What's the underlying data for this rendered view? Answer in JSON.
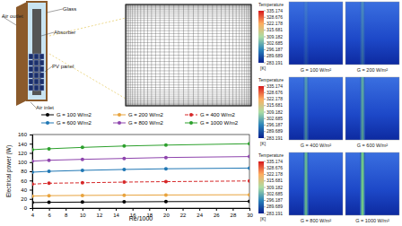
{
  "chart_data": {
    "type": "line",
    "xlabel": "Re/1000",
    "ylabel": "Electrical power (W)",
    "x": [
      4,
      6,
      10,
      15,
      20,
      30
    ],
    "xlim": [
      4,
      30
    ],
    "xticks": [
      4,
      6,
      8,
      10,
      12,
      14,
      16,
      18,
      20,
      22,
      24,
      26,
      28,
      30
    ],
    "ylim": [
      0,
      160
    ],
    "yticks": [
      0,
      20,
      40,
      60,
      80,
      100,
      120,
      140,
      160
    ],
    "grid": false,
    "legend": "top",
    "series": [
      {
        "name": "G = 100 W/m2",
        "color": "#000000",
        "marker": "circle",
        "line_style": "solid",
        "values": [
          12,
          12.5,
          13,
          13.5,
          14,
          14.5
        ]
      },
      {
        "name": "G = 200 W/m2",
        "color": "#e8a33d",
        "marker": "circle",
        "line_style": "solid",
        "values": [
          26,
          27,
          27.5,
          28,
          28.5,
          29
        ]
      },
      {
        "name": "G = 400 W/m2",
        "color": "#d62728",
        "marker": "circle",
        "line_style": "dashed",
        "values": [
          52,
          54,
          55,
          56.5,
          57.5,
          59
        ]
      },
      {
        "name": "G = 600 W/m2",
        "color": "#1f77b4",
        "marker": "circle",
        "line_style": "solid",
        "values": [
          78,
          80,
          82,
          84,
          85.5,
          87
        ]
      },
      {
        "name": "G = 800 W/m2",
        "color": "#8e44ad",
        "marker": "circle",
        "line_style": "solid",
        "values": [
          102,
          104,
          106,
          108,
          110,
          112
        ]
      },
      {
        "name": "G = 1000 W/m2",
        "color": "#2ca02c",
        "marker": "circle",
        "line_style": "solid",
        "values": [
          127,
          129,
          132,
          135,
          137,
          140
        ]
      }
    ]
  },
  "diagram": {
    "labels": [
      "Glass",
      "Absorber",
      "PV panel",
      "Air outlet",
      "Air inlet"
    ]
  },
  "contours": {
    "colorbar_title": "Temperature",
    "unit": "[K]",
    "colorbar_range": [
      283.191,
      335.174
    ],
    "colorbar_ticks": [
      335.174,
      328.676,
      322.178,
      315.681,
      309.182,
      302.685,
      296.187,
      289.689,
      283.191
    ],
    "panels": [
      "G = 100 W/m²",
      "G = 200 W/m²",
      "G = 400 W/m²",
      "G = 600 W/m²",
      "G = 800 W/m²",
      "G = 1000 W/m²"
    ]
  }
}
